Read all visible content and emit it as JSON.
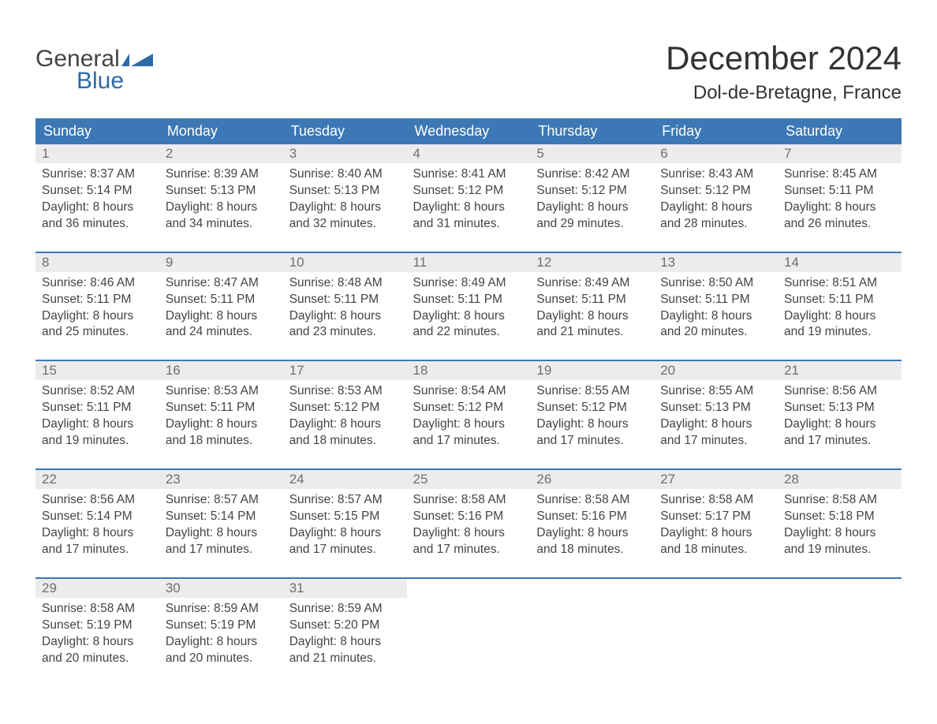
{
  "logo": {
    "word1": "General",
    "word2": "Blue"
  },
  "title": {
    "month": "December 2024",
    "location": "Dol-de-Bretagne, France"
  },
  "colors": {
    "header_bar": "#3b78b5",
    "header_text": "#ffffff",
    "daynum_bg": "#ececec",
    "daynum_text": "#6f6f6f",
    "body_text": "#444444",
    "logo_gray": "#444444",
    "logo_blue": "#2d6aa8",
    "page_bg": "#ffffff"
  },
  "day_names": [
    "Sunday",
    "Monday",
    "Tuesday",
    "Wednesday",
    "Thursday",
    "Friday",
    "Saturday"
  ],
  "weeks": [
    [
      {
        "n": "1",
        "sr": "Sunrise: 8:37 AM",
        "ss": "Sunset: 5:14 PM",
        "d1": "Daylight: 8 hours",
        "d2": "and 36 minutes."
      },
      {
        "n": "2",
        "sr": "Sunrise: 8:39 AM",
        "ss": "Sunset: 5:13 PM",
        "d1": "Daylight: 8 hours",
        "d2": "and 34 minutes."
      },
      {
        "n": "3",
        "sr": "Sunrise: 8:40 AM",
        "ss": "Sunset: 5:13 PM",
        "d1": "Daylight: 8 hours",
        "d2": "and 32 minutes."
      },
      {
        "n": "4",
        "sr": "Sunrise: 8:41 AM",
        "ss": "Sunset: 5:12 PM",
        "d1": "Daylight: 8 hours",
        "d2": "and 31 minutes."
      },
      {
        "n": "5",
        "sr": "Sunrise: 8:42 AM",
        "ss": "Sunset: 5:12 PM",
        "d1": "Daylight: 8 hours",
        "d2": "and 29 minutes."
      },
      {
        "n": "6",
        "sr": "Sunrise: 8:43 AM",
        "ss": "Sunset: 5:12 PM",
        "d1": "Daylight: 8 hours",
        "d2": "and 28 minutes."
      },
      {
        "n": "7",
        "sr": "Sunrise: 8:45 AM",
        "ss": "Sunset: 5:11 PM",
        "d1": "Daylight: 8 hours",
        "d2": "and 26 minutes."
      }
    ],
    [
      {
        "n": "8",
        "sr": "Sunrise: 8:46 AM",
        "ss": "Sunset: 5:11 PM",
        "d1": "Daylight: 8 hours",
        "d2": "and 25 minutes."
      },
      {
        "n": "9",
        "sr": "Sunrise: 8:47 AM",
        "ss": "Sunset: 5:11 PM",
        "d1": "Daylight: 8 hours",
        "d2": "and 24 minutes."
      },
      {
        "n": "10",
        "sr": "Sunrise: 8:48 AM",
        "ss": "Sunset: 5:11 PM",
        "d1": "Daylight: 8 hours",
        "d2": "and 23 minutes."
      },
      {
        "n": "11",
        "sr": "Sunrise: 8:49 AM",
        "ss": "Sunset: 5:11 PM",
        "d1": "Daylight: 8 hours",
        "d2": "and 22 minutes."
      },
      {
        "n": "12",
        "sr": "Sunrise: 8:49 AM",
        "ss": "Sunset: 5:11 PM",
        "d1": "Daylight: 8 hours",
        "d2": "and 21 minutes."
      },
      {
        "n": "13",
        "sr": "Sunrise: 8:50 AM",
        "ss": "Sunset: 5:11 PM",
        "d1": "Daylight: 8 hours",
        "d2": "and 20 minutes."
      },
      {
        "n": "14",
        "sr": "Sunrise: 8:51 AM",
        "ss": "Sunset: 5:11 PM",
        "d1": "Daylight: 8 hours",
        "d2": "and 19 minutes."
      }
    ],
    [
      {
        "n": "15",
        "sr": "Sunrise: 8:52 AM",
        "ss": "Sunset: 5:11 PM",
        "d1": "Daylight: 8 hours",
        "d2": "and 19 minutes."
      },
      {
        "n": "16",
        "sr": "Sunrise: 8:53 AM",
        "ss": "Sunset: 5:11 PM",
        "d1": "Daylight: 8 hours",
        "d2": "and 18 minutes."
      },
      {
        "n": "17",
        "sr": "Sunrise: 8:53 AM",
        "ss": "Sunset: 5:12 PM",
        "d1": "Daylight: 8 hours",
        "d2": "and 18 minutes."
      },
      {
        "n": "18",
        "sr": "Sunrise: 8:54 AM",
        "ss": "Sunset: 5:12 PM",
        "d1": "Daylight: 8 hours",
        "d2": "and 17 minutes."
      },
      {
        "n": "19",
        "sr": "Sunrise: 8:55 AM",
        "ss": "Sunset: 5:12 PM",
        "d1": "Daylight: 8 hours",
        "d2": "and 17 minutes."
      },
      {
        "n": "20",
        "sr": "Sunrise: 8:55 AM",
        "ss": "Sunset: 5:13 PM",
        "d1": "Daylight: 8 hours",
        "d2": "and 17 minutes."
      },
      {
        "n": "21",
        "sr": "Sunrise: 8:56 AM",
        "ss": "Sunset: 5:13 PM",
        "d1": "Daylight: 8 hours",
        "d2": "and 17 minutes."
      }
    ],
    [
      {
        "n": "22",
        "sr": "Sunrise: 8:56 AM",
        "ss": "Sunset: 5:14 PM",
        "d1": "Daylight: 8 hours",
        "d2": "and 17 minutes."
      },
      {
        "n": "23",
        "sr": "Sunrise: 8:57 AM",
        "ss": "Sunset: 5:14 PM",
        "d1": "Daylight: 8 hours",
        "d2": "and 17 minutes."
      },
      {
        "n": "24",
        "sr": "Sunrise: 8:57 AM",
        "ss": "Sunset: 5:15 PM",
        "d1": "Daylight: 8 hours",
        "d2": "and 17 minutes."
      },
      {
        "n": "25",
        "sr": "Sunrise: 8:58 AM",
        "ss": "Sunset: 5:16 PM",
        "d1": "Daylight: 8 hours",
        "d2": "and 17 minutes."
      },
      {
        "n": "26",
        "sr": "Sunrise: 8:58 AM",
        "ss": "Sunset: 5:16 PM",
        "d1": "Daylight: 8 hours",
        "d2": "and 18 minutes."
      },
      {
        "n": "27",
        "sr": "Sunrise: 8:58 AM",
        "ss": "Sunset: 5:17 PM",
        "d1": "Daylight: 8 hours",
        "d2": "and 18 minutes."
      },
      {
        "n": "28",
        "sr": "Sunrise: 8:58 AM",
        "ss": "Sunset: 5:18 PM",
        "d1": "Daylight: 8 hours",
        "d2": "and 19 minutes."
      }
    ],
    [
      {
        "n": "29",
        "sr": "Sunrise: 8:58 AM",
        "ss": "Sunset: 5:19 PM",
        "d1": "Daylight: 8 hours",
        "d2": "and 20 minutes."
      },
      {
        "n": "30",
        "sr": "Sunrise: 8:59 AM",
        "ss": "Sunset: 5:19 PM",
        "d1": "Daylight: 8 hours",
        "d2": "and 20 minutes."
      },
      {
        "n": "31",
        "sr": "Sunrise: 8:59 AM",
        "ss": "Sunset: 5:20 PM",
        "d1": "Daylight: 8 hours",
        "d2": "and 21 minutes."
      },
      null,
      null,
      null,
      null
    ]
  ]
}
